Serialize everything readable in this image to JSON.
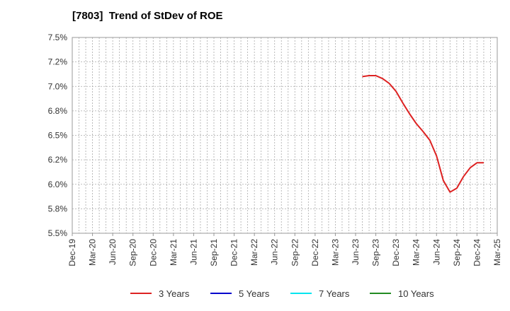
{
  "chart_data": {
    "type": "line",
    "title": "[7803]  Trend of StDev of ROE",
    "xlabel": "",
    "ylabel": "",
    "ylim": [
      5.5,
      7.5
    ],
    "yticks": [
      "7.5%",
      "7.2%",
      "7.0%",
      "6.8%",
      "6.5%",
      "6.2%",
      "6.0%",
      "5.8%",
      "5.5%"
    ],
    "xticks": [
      "Dec-19",
      "Mar-20",
      "Jun-20",
      "Sep-20",
      "Dec-20",
      "Mar-21",
      "Jun-21",
      "Sep-21",
      "Dec-21",
      "Mar-22",
      "Jun-22",
      "Sep-22",
      "Dec-22",
      "Mar-23",
      "Jun-23",
      "Sep-23",
      "Dec-23",
      "Mar-24",
      "Jun-24",
      "Sep-24",
      "Dec-24",
      "Mar-25"
    ],
    "grid": true,
    "legend_position": "bottom",
    "series": [
      {
        "name": "3 Years",
        "color": "#dd2222",
        "points": [
          [
            "Jul-23",
            7.1
          ],
          [
            "Aug-23",
            7.11
          ],
          [
            "Sep-23",
            7.11
          ],
          [
            "Oct-23",
            7.08
          ],
          [
            "Nov-23",
            7.03
          ],
          [
            "Dec-23",
            6.95
          ],
          [
            "Jan-24",
            6.83
          ],
          [
            "Feb-24",
            6.72
          ],
          [
            "Mar-24",
            6.62
          ],
          [
            "Apr-24",
            6.54
          ],
          [
            "May-24",
            6.45
          ],
          [
            "Jun-24",
            6.29
          ],
          [
            "Jul-24",
            6.04
          ],
          [
            "Aug-24",
            5.92
          ],
          [
            "Sep-24",
            5.96
          ],
          [
            "Oct-24",
            6.08
          ],
          [
            "Nov-24",
            6.17
          ],
          [
            "Dec-24",
            6.22
          ],
          [
            "Jan-25",
            6.22
          ]
        ]
      },
      {
        "name": "5 Years",
        "color": "#0000cc",
        "points": []
      },
      {
        "name": "7 Years",
        "color": "#00e5ee",
        "points": []
      },
      {
        "name": "10 Years",
        "color": "#228b22",
        "points": []
      }
    ]
  }
}
